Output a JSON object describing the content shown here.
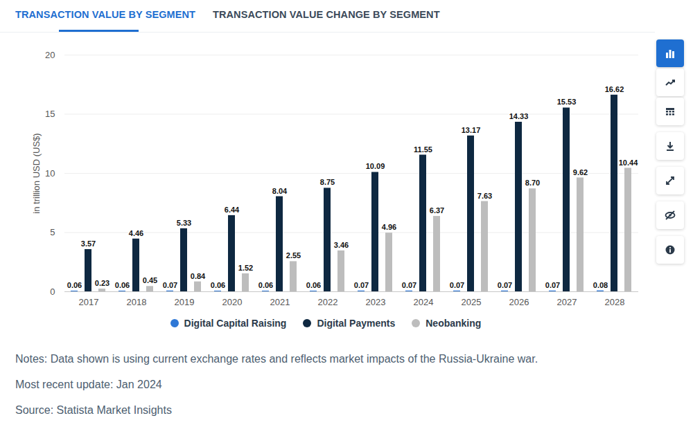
{
  "tabs": [
    "TRANSACTION VALUE BY SEGMENT",
    "TRANSACTION VALUE CHANGE BY SEGMENT"
  ],
  "notes": [
    "Notes: Data shown is using current exchange rates and reflects market impacts of the Russia-Ukraine war.",
    "Most recent update: Jan 2024",
    "Source: Statista Market Insights"
  ],
  "chart_data": {
    "type": "bar",
    "ylabel": "in trillion USD (US$)",
    "categories": [
      "2017",
      "2018",
      "2019",
      "2020",
      "2021",
      "2022",
      "2023",
      "2024",
      "2025",
      "2026",
      "2027",
      "2028"
    ],
    "series": [
      {
        "name": "Digital Capital Raising",
        "color": "#2f78d6",
        "values": [
          0.06,
          0.06,
          0.07,
          0.06,
          0.06,
          0.06,
          0.07,
          0.07,
          0.07,
          0.07,
          0.07,
          0.08
        ],
        "value_labels": [
          "0.06",
          "0.06",
          "0.07",
          "0.06",
          "0.06",
          "0.06",
          "0.07",
          "0.07",
          "0.07",
          "0.07",
          "0.07",
          "0.08"
        ]
      },
      {
        "name": "Digital Payments",
        "color": "#0e2841",
        "values": [
          3.57,
          4.46,
          5.33,
          6.44,
          8.04,
          8.75,
          10.09,
          11.55,
          13.17,
          14.33,
          15.53,
          16.62
        ],
        "value_labels": [
          "3.57",
          "4.46",
          "5.33",
          "6.44",
          "8.04",
          "8.75",
          "10.09",
          "11.55",
          "13.17",
          "14.33",
          "15.53",
          "16.62"
        ]
      },
      {
        "name": "Neobanking",
        "color": "#bdbdbd",
        "values": [
          0.23,
          0.45,
          0.84,
          1.52,
          2.55,
          3.46,
          4.96,
          6.37,
          7.63,
          8.7,
          9.62,
          10.44
        ],
        "value_labels": [
          "0.23",
          "0.45",
          "0.84",
          "1.52",
          "2.55",
          "3.46",
          "4.96",
          "6.37",
          "7.63",
          "8.70",
          "9.62",
          "10.44"
        ]
      }
    ],
    "ylim": [
      0,
      20
    ],
    "yticks": [
      0,
      5,
      10,
      15,
      20
    ],
    "grid": true,
    "data_labels": true,
    "legend": "bottom"
  }
}
